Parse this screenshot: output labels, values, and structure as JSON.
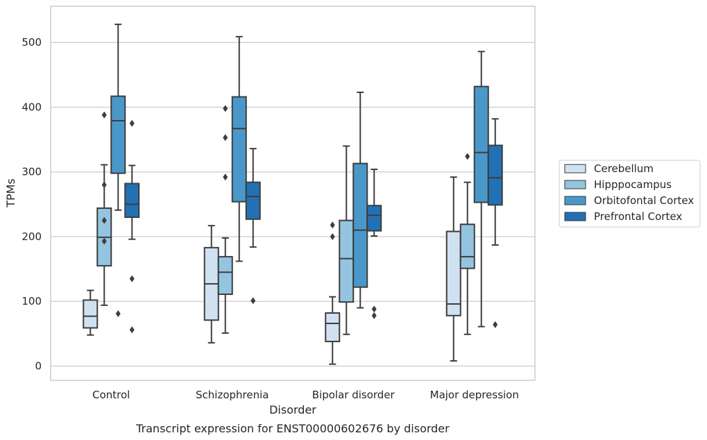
{
  "chart_data": {
    "type": "box",
    "xlabel": "Disorder",
    "ylabel": "TPMs",
    "caption": "Transcript expression for ENST00000602676 by disorder",
    "ylim": [
      -22,
      556
    ],
    "yticks": [
      0,
      100,
      200,
      300,
      400,
      500
    ],
    "grid": "horizontal",
    "legend_position": "right",
    "categories": [
      "Control",
      "Schizophrenia",
      "Bipolar disorder",
      "Major depression"
    ],
    "series": [
      {
        "name": "Cerebellum",
        "color": "#d0e1f2",
        "boxes": [
          {
            "whisker_low": 48,
            "q1": 59,
            "median": 77,
            "q3": 102,
            "whisker_high": 117,
            "outliers": []
          },
          {
            "whisker_low": 36,
            "q1": 71,
            "median": 127,
            "q3": 183,
            "whisker_high": 217,
            "outliers": []
          },
          {
            "whisker_low": 3,
            "q1": 38,
            "median": 66,
            "q3": 82,
            "whisker_high": 107,
            "outliers": [
              200,
              218
            ]
          },
          {
            "whisker_low": 8,
            "q1": 78,
            "median": 96,
            "q3": 208,
            "whisker_high": 292,
            "outliers": []
          }
        ]
      },
      {
        "name": "Hipppocampus",
        "color": "#94c4df",
        "boxes": [
          {
            "whisker_low": 94,
            "q1": 155,
            "median": 199,
            "q3": 244,
            "whisker_high": 311,
            "outliers": [
              193,
              225,
              280,
              388
            ]
          },
          {
            "whisker_low": 51,
            "q1": 111,
            "median": 145,
            "q3": 169,
            "whisker_high": 198,
            "outliers": [
              292,
              353,
              398
            ]
          },
          {
            "whisker_low": 49,
            "q1": 99,
            "median": 166,
            "q3": 225,
            "whisker_high": 340,
            "outliers": []
          },
          {
            "whisker_low": 49,
            "q1": 151,
            "median": 169,
            "q3": 219,
            "whisker_high": 284,
            "outliers": [
              324
            ]
          }
        ]
      },
      {
        "name": "Orbitofontal Cortex",
        "color": "#4a98c9",
        "boxes": [
          {
            "whisker_low": 241,
            "q1": 298,
            "median": 379,
            "q3": 417,
            "whisker_high": 528,
            "outliers": [
              81
            ]
          },
          {
            "whisker_low": 162,
            "q1": 254,
            "median": 367,
            "q3": 416,
            "whisker_high": 509,
            "outliers": []
          },
          {
            "whisker_low": 90,
            "q1": 122,
            "median": 210,
            "q3": 313,
            "whisker_high": 423,
            "outliers": []
          },
          {
            "whisker_low": 61,
            "q1": 253,
            "median": 330,
            "q3": 432,
            "whisker_high": 486,
            "outliers": []
          }
        ]
      },
      {
        "name": "Prefrontal Cortex",
        "color": "#2271b5",
        "boxes": [
          {
            "whisker_low": 196,
            "q1": 230,
            "median": 250,
            "q3": 282,
            "whisker_high": 310,
            "outliers": [
              56,
              135,
              375
            ]
          },
          {
            "whisker_low": 184,
            "q1": 227,
            "median": 262,
            "q3": 284,
            "whisker_high": 336,
            "outliers": [
              101
            ]
          },
          {
            "whisker_low": 201,
            "q1": 209,
            "median": 233,
            "q3": 248,
            "whisker_high": 304,
            "outliers": [
              78,
              88
            ]
          },
          {
            "whisker_low": 187,
            "q1": 249,
            "median": 291,
            "q3": 341,
            "whisker_high": 382,
            "outliers": [
              64
            ]
          }
        ]
      }
    ]
  }
}
